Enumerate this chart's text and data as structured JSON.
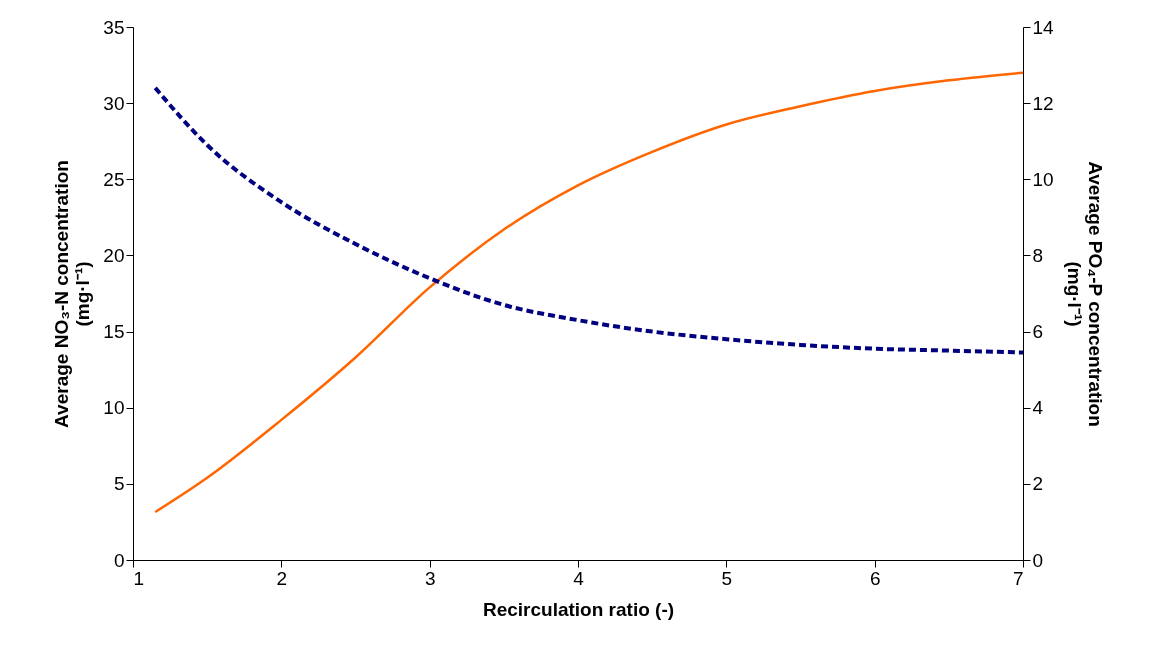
{
  "chart_data": {
    "type": "line",
    "xlabel": "Recirculation ratio (-)",
    "ylabel": "Average NO₃-N concentration (mg·l⁻¹)",
    "y2label": "Average PO₄-P concentration (mg·l⁻¹)",
    "xlim": [
      1,
      7
    ],
    "xticks": [
      1,
      2,
      3,
      4,
      5,
      6,
      7
    ],
    "ylim": [
      0,
      35
    ],
    "yticks": [
      0,
      5,
      10,
      15,
      20,
      25,
      30,
      35
    ],
    "y2lim": [
      0,
      14
    ],
    "y2ticks": [
      0,
      2,
      4,
      6,
      8,
      10,
      12,
      14
    ],
    "grid": false,
    "marker": "none",
    "series": [
      {
        "color": "#ff6600",
        "line_style": "solid",
        "x": [
          1.15,
          1.5,
          2,
          2.5,
          3,
          3.5,
          4,
          4.5,
          5,
          5.5,
          6,
          6.5,
          7
        ],
        "values": [
          3.15,
          5.4,
          9.2,
          13.3,
          17.9,
          21.7,
          24.6,
          26.8,
          28.6,
          29.8,
          30.8,
          31.5,
          32.0
        ]
      },
      {
        "color": "#000080",
        "line_style": "dashed",
        "axis": "y2",
        "x": [
          1.15,
          1.5,
          2,
          2.5,
          3,
          3.5,
          4,
          4.5,
          5,
          5.5,
          6,
          6.5,
          7
        ],
        "values": [
          12.4,
          10.9,
          9.4,
          8.3,
          7.4,
          6.7,
          6.3,
          6.0,
          5.8,
          5.65,
          5.55,
          5.5,
          5.45
        ]
      }
    ]
  }
}
